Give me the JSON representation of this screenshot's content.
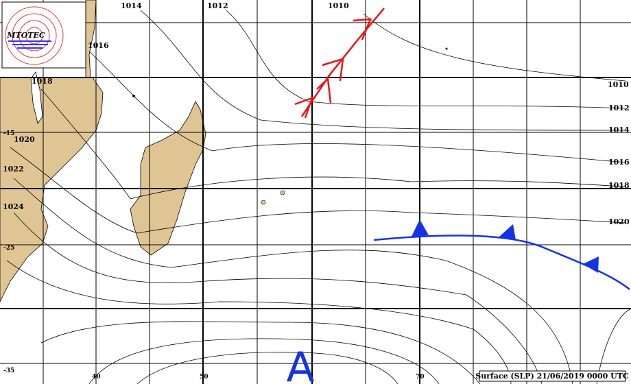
{
  "logo": {
    "text": "MTOTEC"
  },
  "isobar_labels": [
    "1014",
    "1012",
    "1010",
    "1016",
    "1018",
    "1020",
    "1022",
    "1024",
    "1010",
    "1012",
    "1014",
    "1016",
    "1018",
    "1020"
  ],
  "latitude_labels": [
    "-15",
    "-25",
    "-35"
  ],
  "longitude_labels": [
    "40",
    "50",
    "70"
  ],
  "high_center": "A",
  "footer": "Surface (SLP) 21/06/2019 0000 UTC"
}
